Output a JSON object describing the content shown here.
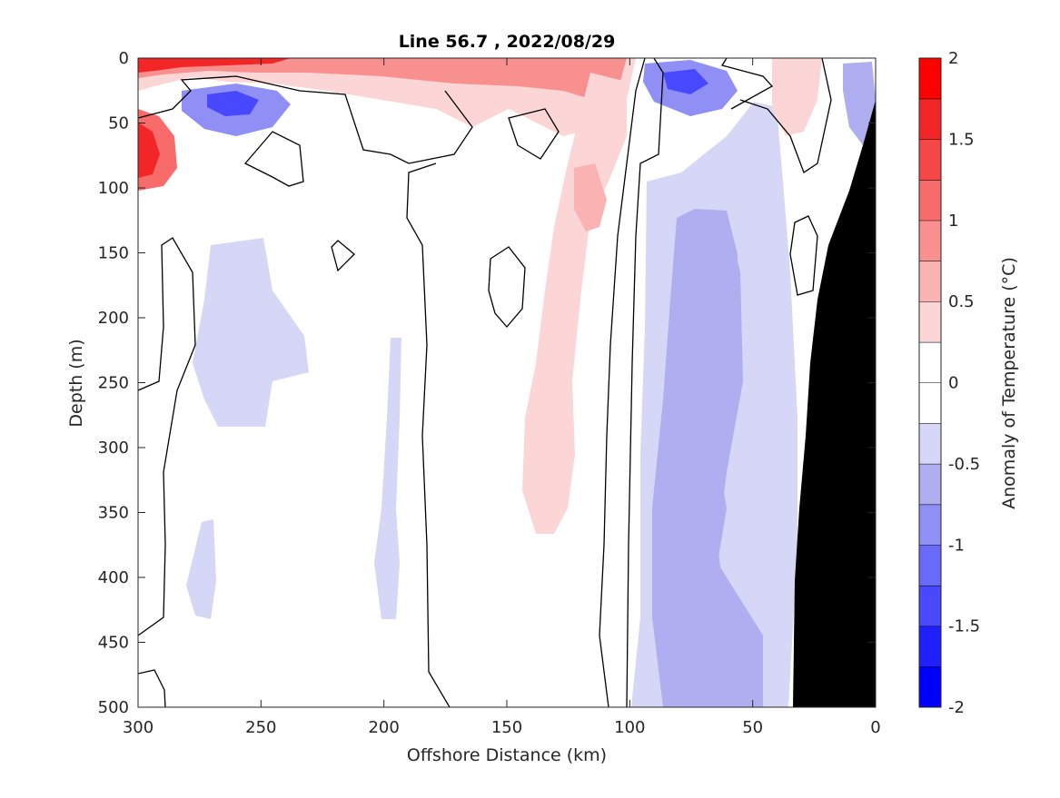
{
  "chart_data": {
    "type": "heatmap",
    "title": "Line 56.7 , 2022/08/29",
    "xlabel": "Offshore Distance (km)",
    "ylabel": "Depth (m)",
    "xlim": [
      300,
      0
    ],
    "ylim": [
      0,
      500
    ],
    "x_reversed": true,
    "y_reversed": true,
    "xticks": [
      "300",
      "250",
      "200",
      "150",
      "100",
      "50",
      "0"
    ],
    "yticks": [
      "0",
      "50",
      "100",
      "150",
      "200",
      "250",
      "300",
      "350",
      "400",
      "450",
      "500"
    ],
    "colorbar": {
      "label": "Anomaly of Temperature (°C)",
      "ticks": [
        "2",
        "1.5",
        "1",
        "0.5",
        "0",
        "-0.5",
        "-1",
        "-1.5",
        "-2"
      ],
      "levels": [
        -2,
        -1.75,
        -1.5,
        -1.25,
        -1,
        -0.75,
        -0.5,
        -0.25,
        0,
        0.25,
        0.5,
        0.75,
        1,
        1.25,
        1.5,
        1.75,
        2
      ],
      "colors": [
        "#0000ff",
        "#2020ff",
        "#4848ff",
        "#6a6afa",
        "#8f8ff5",
        "#aeaef0",
        "#d6d6f7",
        "#ffffff",
        "#ffffff",
        "#fcd6d6",
        "#fab2b2",
        "#f99090",
        "#f76b6b",
        "#f44848",
        "#f22626",
        "#ff0000"
      ]
    },
    "anomaly_regions": [
      {
        "name": "surface warm band",
        "distance_km": [
          300,
          100
        ],
        "depth_m": [
          0,
          20
        ],
        "anomaly_c": 1.5
      },
      {
        "name": "nearshore warm core",
        "distance_km": [
          300,
          290
        ],
        "depth_m": [
          45,
          110
        ],
        "anomaly_c": 1.25
      },
      {
        "name": "offshore cold eddy",
        "distance_km": [
          280,
          245
        ],
        "depth_m": [
          15,
          60
        ],
        "anomaly_c": -1.25
      },
      {
        "name": "deep warm plume",
        "distance_km": [
          135,
          105
        ],
        "depth_m": [
          20,
          370
        ],
        "anomaly_c": 0.5
      },
      {
        "name": "subsurface cold lens",
        "distance_km": [
          95,
          45
        ],
        "depth_m": [
          120,
          500
        ],
        "anomaly_c": -0.75
      },
      {
        "name": "shallow cold core",
        "distance_km": [
          95,
          65
        ],
        "depth_m": [
          0,
          40
        ],
        "anomaly_c": -1.5
      },
      {
        "name": "offshore weak cold",
        "distance_km": [
          270,
          225
        ],
        "depth_m": [
          140,
          290
        ],
        "anomaly_c": -0.4
      },
      {
        "name": "coastal cold patch",
        "distance_km": [
          20,
          0
        ],
        "depth_m": [
          0,
          110
        ],
        "anomaly_c": -0.75
      }
    ],
    "bathymetry": "seafloor at 0 km near 40 m, deepening to 500 m at about 33 km offshore"
  }
}
